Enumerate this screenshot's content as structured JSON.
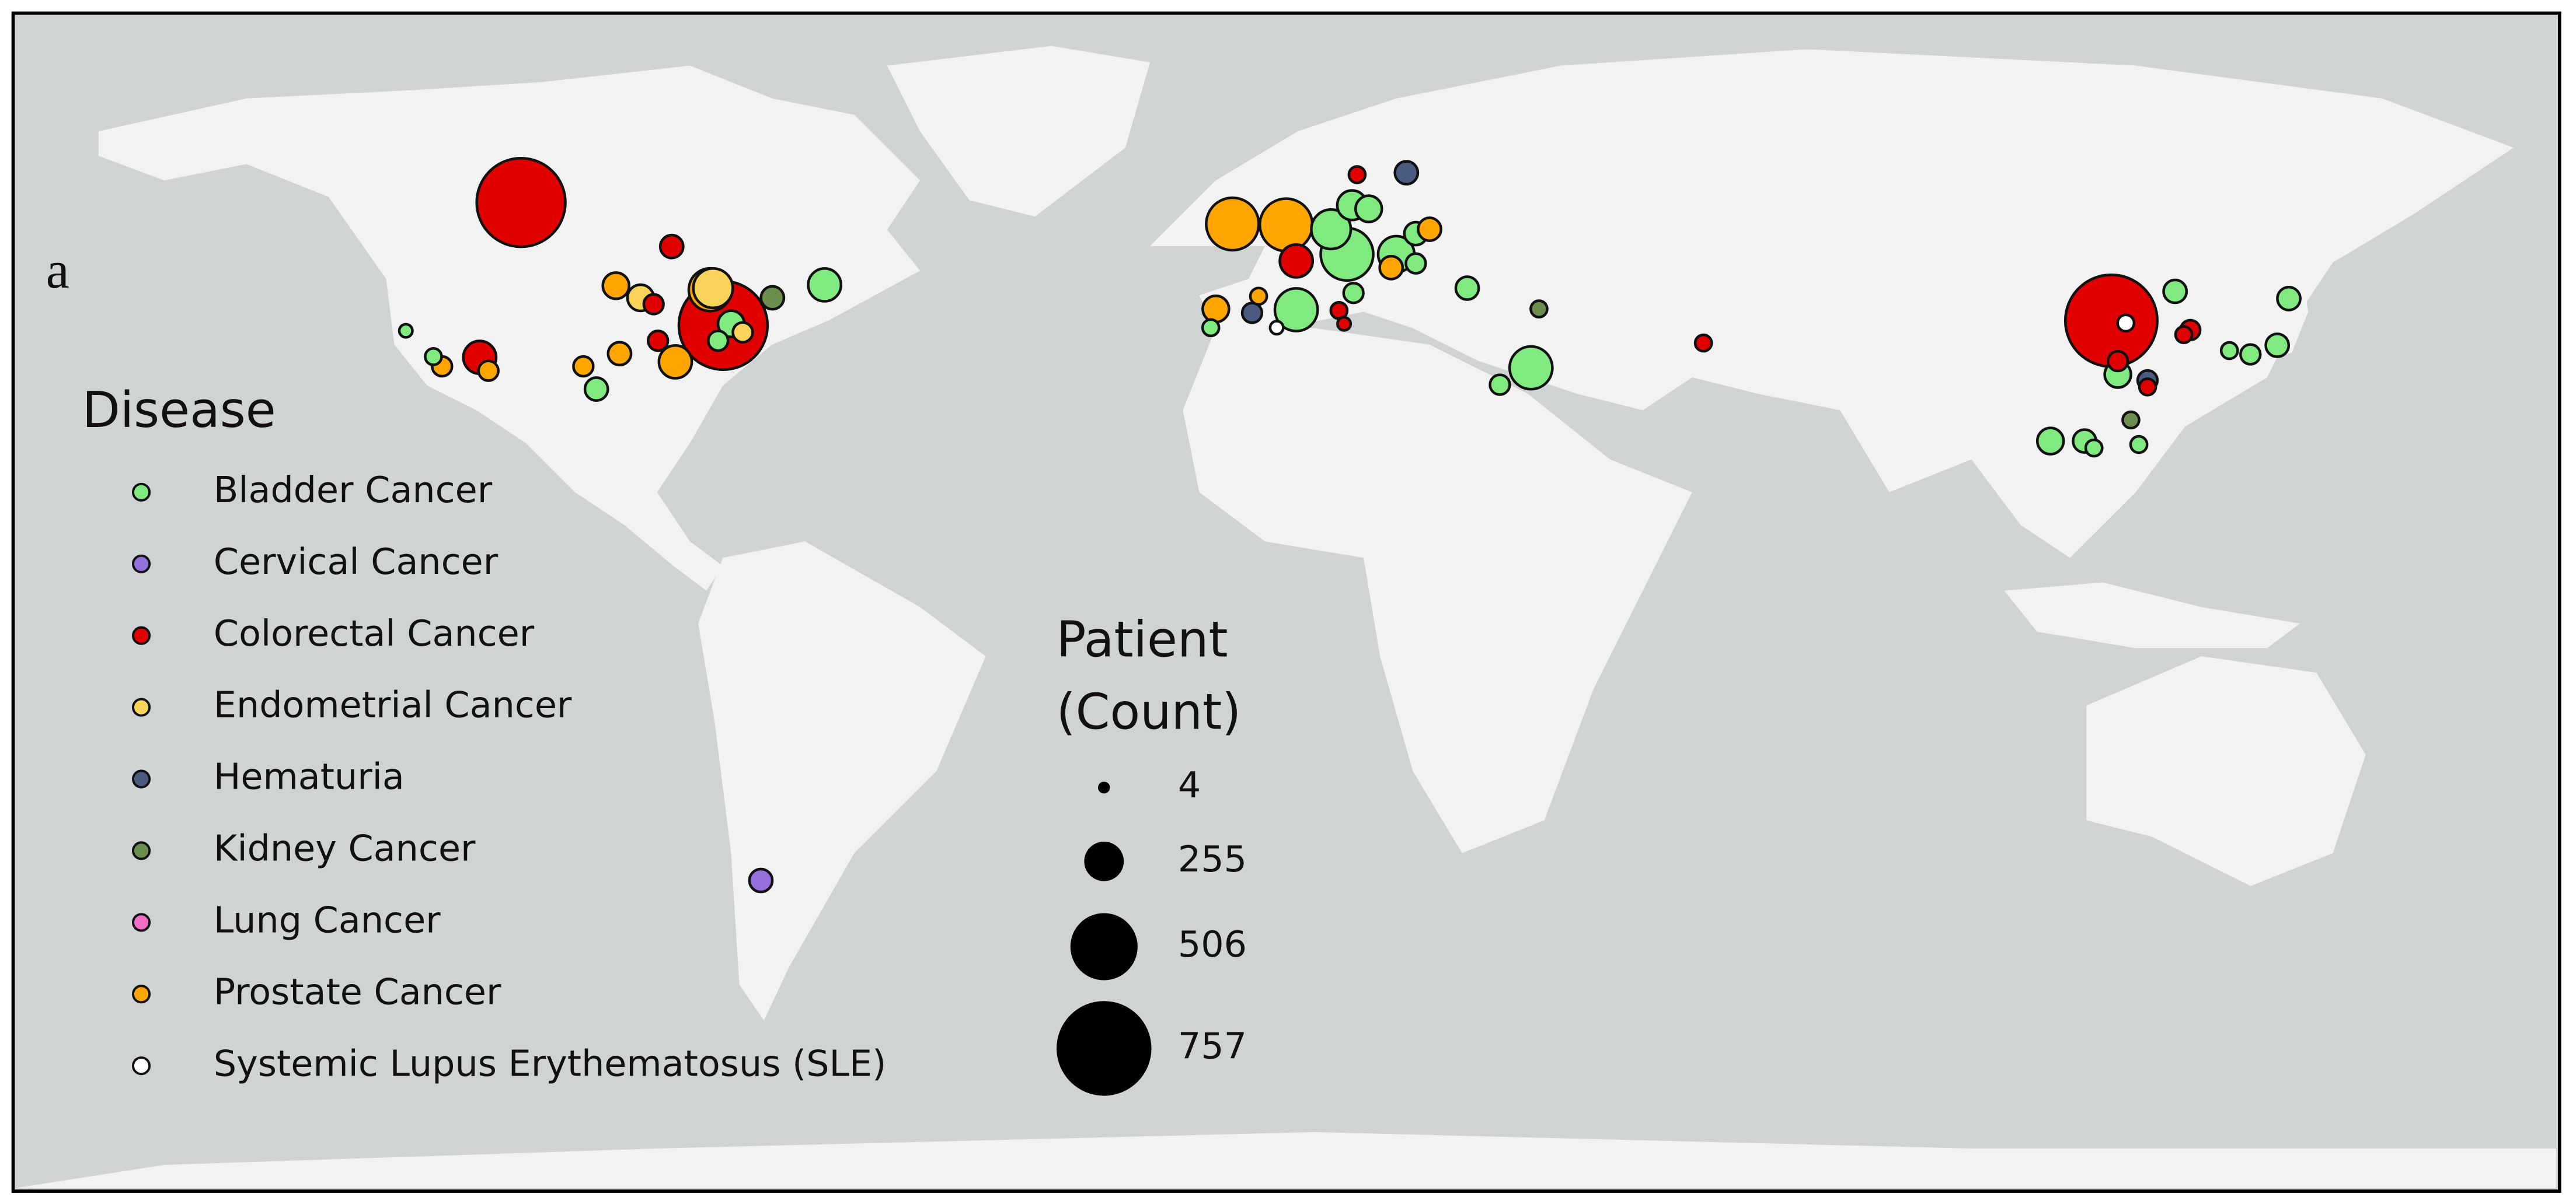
{
  "chart_data": {
    "type": "bubble-map",
    "panel_label": "a",
    "legend_title": "Disease",
    "size_legend_title": [
      "Patient",
      "(Count)"
    ],
    "size_ticks": [
      4,
      255,
      506,
      757
    ],
    "series": [
      {
        "name": "Bladder Cancer",
        "color": "#80ea80",
        "lon": [
          -62.6,
          -75.5,
          -77.3,
          -94.1,
          -120.4,
          -116.6,
          2.5,
          -9.3,
          7.3,
          9.5,
          10.2,
          12.5,
          16.3,
          19.0,
          19.0,
          10.4,
          26.1,
          34.9,
          30.6,
          115.9,
          123.8,
          106.6,
          111.3,
          112.6,
          118.8,
          139.5,
          137.9,
          134.2,
          131.3
        ],
        "lat": [
          44.9,
          40.0,
          37.8,
          31.3,
          39.1,
          35.7,
          41.8,
          39.5,
          51.5,
          48.6,
          54.2,
          53.8,
          48.6,
          47.5,
          51.0,
          43.9,
          44.5,
          34.2,
          31.9,
          33.3,
          44.1,
          24.0,
          24.0,
          23.0,
          23.5,
          43.2,
          37.2,
          36.0,
          36.5
        ],
        "values": [
          194,
          134,
          75,
          104,
          15,
          45,
          284,
          45,
          254,
          373,
          164,
          134,
          224,
          75,
          104,
          75,
          104,
          284,
          75,
          134,
          104,
          134,
          104,
          45,
          45,
          104,
          104,
          75,
          45
        ]
      },
      {
        "name": "Cervical Cancer",
        "color": "#9370db",
        "lon": [
          -71.4
        ],
        "lat": [
          -40.0
        ],
        "values": [
          104
        ]
      },
      {
        "name": "Colorectal Cancer",
        "color": "#e00000",
        "lon": [
          -104.5,
          -83.7,
          -86.2,
          -110.2,
          -85.6,
          -76.6,
          2.5,
          10.9,
          8.4,
          9.1,
          58.7,
          115.0,
          125.9,
          125.0,
          120.0,
          115.9
        ],
        "lat": [
          54.5,
          49.5,
          42.5,
          35.6,
          37.8,
          39.8,
          47.8,
          57.5,
          41.7,
          40.0,
          37.5,
          40.4,
          39.2,
          38.6,
          31.6,
          35.1
        ],
        "values": [
          701,
          104,
          75,
          194,
          75,
          701,
          194,
          45,
          45,
          15,
          45,
          731,
          75,
          45,
          45,
          75
        ]
      },
      {
        "name": "Endometrial Cancer",
        "color": "#f7d35a",
        "lon": [
          -88.0,
          -78.0,
          -73.9
        ],
        "lat": [
          43.3,
          44.5,
          38.9
        ],
        "values": [
          134,
          254,
          75
        ]
      },
      {
        "name": "Hematuria",
        "color": "#4a5a80",
        "lon": [
          17.7,
          -3.6,
          120.0
        ],
        "lat": [
          57.7,
          41.4,
          32.5
        ],
        "values": [
          104,
          75,
          75
        ]
      },
      {
        "name": "Kidney Cancer",
        "color": "#6b8e4e",
        "lon": [
          -69.8,
          36.0,
          117.7
        ],
        "lat": [
          43.3,
          41.9,
          27.0
        ],
        "values": [
          104,
          45,
          45
        ]
      },
      {
        "name": "Lung Cancer",
        "color": "#f06ec8",
        "lon": [],
        "lat": [],
        "values": []
      },
      {
        "name": "Prostate Cancer",
        "color": "#ffa500",
        "lon": [
          -6.3,
          1.1,
          20.9,
          15.6,
          -90.9,
          -109.0,
          -115.4,
          -91.4,
          -78.4,
          -83.2,
          -8.6,
          -2.7,
          -95.9
        ],
        "lat": [
          52.1,
          52.0,
          51.5,
          47.0,
          36.1,
          33.8,
          34.4,
          44.8,
          44.3,
          35.0,
          41.9,
          43.5,
          34.4
        ],
        "values": [
          373,
          373,
          104,
          104,
          104,
          75,
          75,
          134,
          284,
          194,
          134,
          45,
          75
        ]
      },
      {
        "name": "Systemic Lupus Erythematosus (SLE)",
        "color": "#ffffff",
        "lon": [
          -0.2,
          117.0
        ],
        "lat": [
          39.5,
          40.1
        ],
        "values": [
          15,
          45
        ]
      }
    ]
  }
}
